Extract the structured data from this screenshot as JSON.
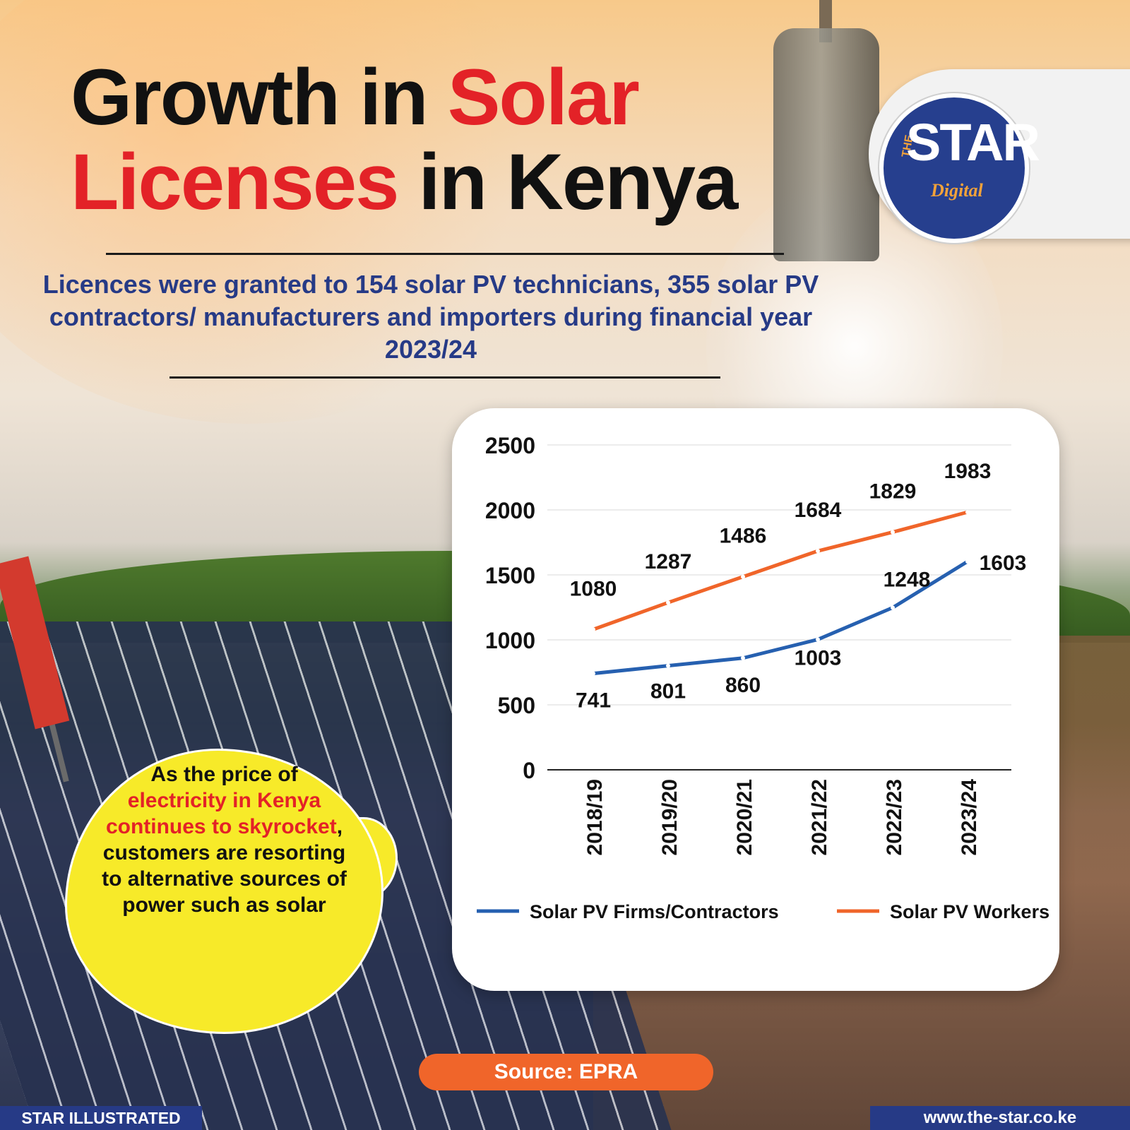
{
  "header": {
    "title_part1": "Growth in ",
    "title_part2": "Solar",
    "title_part3": "Licenses",
    "title_part4": " in Kenya",
    "subtitle": "Licences were granted to 154 solar PV technicians, 355 solar PV contractors/ manufacturers and importers during financial year 2023/24"
  },
  "logo": {
    "the": "THE",
    "star": "STAR",
    "digital": "Digital"
  },
  "callout": {
    "part1": "As the price of ",
    "part2": "electricity in Kenya continues to skyrocket",
    "part3": ", customers are resorting to alternative sources of power such as solar"
  },
  "source": "Source: EPRA",
  "footer": {
    "left": "STAR ILLUSTRATED",
    "right": "www.the-star.co.ke"
  },
  "colors": {
    "firms": "#2660b0",
    "workers": "#f0652a",
    "accent_red": "#e32227",
    "navy": "#263a86",
    "callout_yellow": "#f7ea29"
  },
  "chart_data": {
    "type": "line",
    "categories": [
      "2018/19",
      "2019/20",
      "2020/21",
      "2021/22",
      "2022/23",
      "2023/24"
    ],
    "series": [
      {
        "name": "Solar PV Firms/Contractors",
        "values": [
          741,
          801,
          860,
          1003,
          1248,
          1603
        ]
      },
      {
        "name": "Solar PV Workers",
        "values": [
          1080,
          1287,
          1486,
          1684,
          1829,
          1983
        ]
      }
    ],
    "yticks": [
      "0",
      "500",
      "1000",
      "1500",
      "2000",
      "2500"
    ],
    "ylim": [
      0,
      2500
    ],
    "grid": true,
    "legend_position": "bottom"
  }
}
